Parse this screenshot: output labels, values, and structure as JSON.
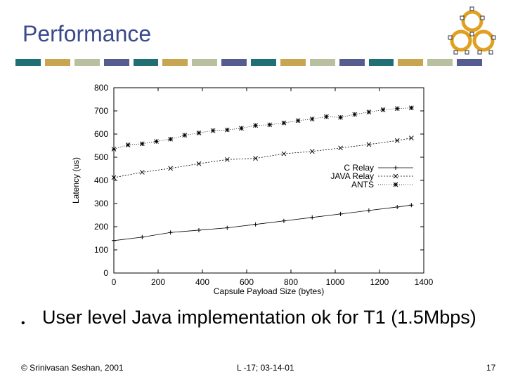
{
  "slide": {
    "title": "Performance",
    "bullet": "User level Java implementation ok for T1 (1.5Mbps)",
    "footer_left": "© Srinivasan Seshan, 2001",
    "footer_center": "L -17; 03-14-01",
    "page_number": "17",
    "color_bar": [
      "#1f6f75",
      "#c8a550",
      "#b8c0a0",
      "#555d90",
      "#1f6f75",
      "#c8a550",
      "#b8c0a0",
      "#555d90",
      "#1f6f75",
      "#c8a550",
      "#b8c0a0",
      "#555d90",
      "#1f6f75",
      "#c8a550",
      "#b8c0a0",
      "#555d90"
    ]
  },
  "chart_data": {
    "type": "line",
    "title": "",
    "xlabel": "Capsule Payload Size (bytes)",
    "ylabel": "Latency (us)",
    "xlim": [
      0,
      1400
    ],
    "ylim": [
      0,
      800
    ],
    "xticks": [
      0,
      200,
      400,
      600,
      800,
      1000,
      1200,
      1400
    ],
    "yticks": [
      0,
      100,
      200,
      300,
      400,
      500,
      600,
      700,
      800
    ],
    "grid": false,
    "legend_position": "right",
    "series": [
      {
        "name": "C Relay",
        "marker": "+",
        "color": "#000000",
        "x": [
          0,
          128,
          256,
          384,
          512,
          640,
          768,
          896,
          1024,
          1152,
          1280,
          1344
        ],
        "y": [
          140,
          155,
          175,
          185,
          195,
          210,
          225,
          240,
          255,
          270,
          285,
          293
        ]
      },
      {
        "name": "JAVA Relay",
        "marker": "x",
        "color": "#000000",
        "x": [
          0,
          128,
          256,
          384,
          512,
          640,
          768,
          896,
          1024,
          1152,
          1280,
          1344
        ],
        "y": [
          412,
          435,
          452,
          472,
          490,
          495,
          515,
          525,
          540,
          555,
          572,
          583
        ]
      },
      {
        "name": "ANTS",
        "marker": "*",
        "color": "#000000",
        "x": [
          0,
          64,
          128,
          192,
          256,
          320,
          384,
          448,
          512,
          576,
          640,
          704,
          768,
          832,
          896,
          960,
          1024,
          1088,
          1152,
          1216,
          1280,
          1344
        ],
        "y": [
          535,
          553,
          558,
          568,
          578,
          595,
          605,
          615,
          618,
          625,
          637,
          640,
          648,
          658,
          665,
          675,
          672,
          685,
          695,
          705,
          710,
          713
        ]
      }
    ]
  }
}
